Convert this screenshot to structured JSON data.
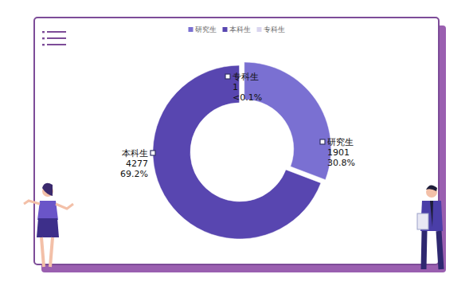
{
  "chart_data": {
    "type": "donut",
    "categories": [
      "研究生",
      "本科生",
      "专科生"
    ],
    "values": [
      1901,
      4277,
      1
    ],
    "percent_labels": [
      "30.8%",
      "69.2%",
      "<0.1%"
    ],
    "colors": [
      "#7a70d2",
      "#5846b0",
      "#d9d5ef"
    ],
    "legend": "top",
    "data_labels": true
  }
}
